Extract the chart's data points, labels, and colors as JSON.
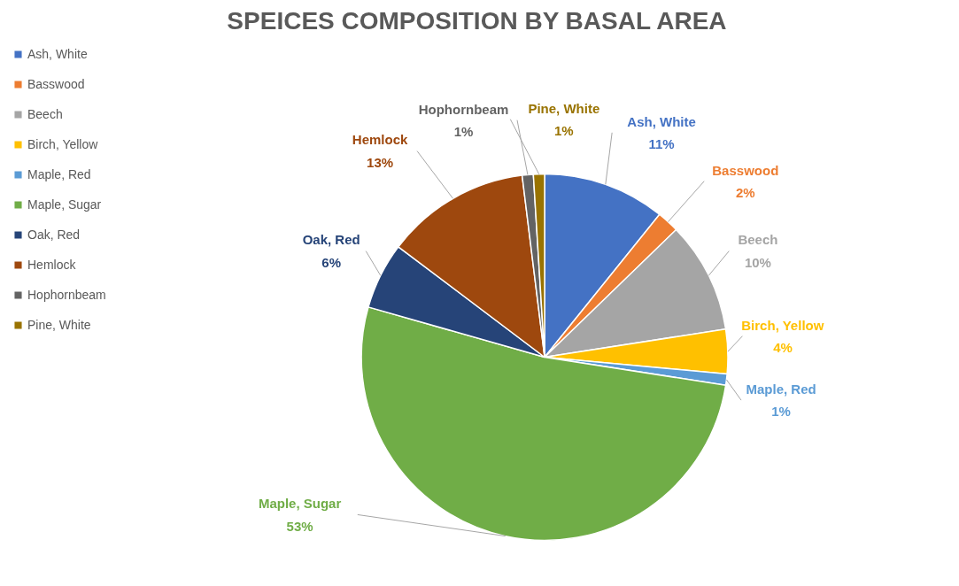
{
  "chart_data": {
    "type": "pie",
    "title": "SPEICES COMPOSITION BY BASAL AREA",
    "categories": [
      "Ash, White",
      "Basswood",
      "Beech",
      "Birch, Yellow",
      "Maple, Red",
      "Maple, Sugar",
      "Oak, Red",
      "Hemlock",
      "Hophornbeam",
      "Pine, White"
    ],
    "values": [
      11,
      2,
      10,
      4,
      1,
      53,
      6,
      13,
      1,
      1
    ],
    "value_labels": [
      "11%",
      "2%",
      "10%",
      "4%",
      "1%",
      "53%",
      "6%",
      "13%",
      "1%",
      "1%"
    ],
    "colors": [
      "#4472c4",
      "#ed7d31",
      "#a5a5a5",
      "#ffc000",
      "#5b9bd5",
      "#70ad47",
      "#264478",
      "#9e480e",
      "#636363",
      "#997300"
    ],
    "legend": "left"
  }
}
